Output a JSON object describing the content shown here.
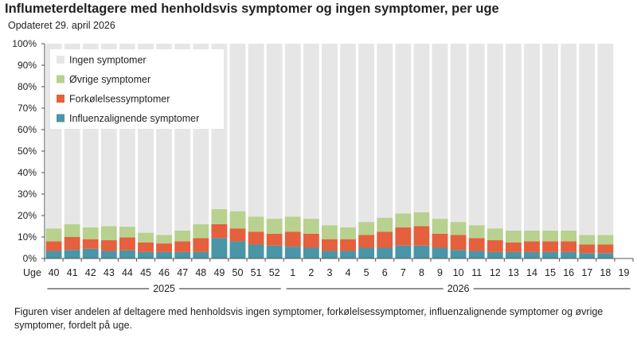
{
  "header": {
    "title": "Influmeterdeltagere med henholdsvis symptomer og ingen symptomer, per uge",
    "subtitle": "Opdateret 29. april 2026"
  },
  "caption": "Figuren viser andelen af deltagere med henholdsvis ingen symptomer, forkølelsessymptomer, influenzalignende symptomer og øvrige symptomer, fordelt på uge.",
  "chart_data": {
    "type": "bar",
    "stacked": true,
    "x_axis_prefix": "Uge",
    "categories": [
      "40",
      "41",
      "42",
      "43",
      "44",
      "45",
      "46",
      "47",
      "48",
      "49",
      "50",
      "51",
      "52",
      "1",
      "2",
      "3",
      "4",
      "5",
      "6",
      "7",
      "8",
      "9",
      "10",
      "11",
      "12",
      "13",
      "14",
      "15",
      "16",
      "17",
      "18",
      "19"
    ],
    "year_groups": [
      {
        "label": "2025",
        "start": 0,
        "end": 12
      },
      {
        "label": "2026",
        "start": 13,
        "end": 31
      }
    ],
    "ylim": [
      0,
      100
    ],
    "yticks": [
      0,
      10,
      20,
      30,
      40,
      50,
      60,
      70,
      80,
      90,
      100
    ],
    "ytick_labels": [
      "0%",
      "10%",
      "20%",
      "30%",
      "40%",
      "50%",
      "60%",
      "70%",
      "80%",
      "90%",
      "100%"
    ],
    "grid": false,
    "legend_position": "top-left",
    "legend_order": [
      "Ingen symptomer",
      "Øvrige symptomer",
      "Forkølelsessymptomer",
      "Influenzalignende symptomer"
    ],
    "series": [
      {
        "name": "Influenzalignende symptomer",
        "color": "#4a95a7",
        "values": [
          3.5,
          4,
          4.5,
          3.5,
          3.8,
          3,
          3,
          3,
          3,
          9.5,
          8,
          6.5,
          6,
          5.5,
          5,
          3.5,
          3.5,
          5,
          5,
          6,
          6,
          5,
          4,
          3.5,
          3,
          3,
          3,
          3,
          3,
          2.5,
          2.5,
          null
        ]
      },
      {
        "name": "Forkølelsessymptomer",
        "color": "#e5603c",
        "values": [
          4.5,
          6,
          4.5,
          5,
          6,
          4.5,
          4,
          5,
          6.5,
          6.5,
          6,
          6,
          5.5,
          7,
          6.5,
          5.5,
          5.5,
          6,
          7.5,
          8.5,
          9,
          6.5,
          7,
          6,
          5.5,
          4.5,
          5,
          5,
          5,
          4,
          4,
          null
        ]
      },
      {
        "name": "Øvrige symptomer",
        "color": "#b8d18f",
        "values": [
          6,
          6,
          5.5,
          6.5,
          5,
          4.5,
          4,
          5,
          6.5,
          7,
          8,
          7,
          7,
          7,
          7,
          6.5,
          5.5,
          6,
          6.5,
          6.5,
          6.5,
          7,
          6,
          6,
          5.5,
          5.5,
          5,
          5,
          5,
          4.5,
          4.5,
          null
        ]
      },
      {
        "name": "Ingen symptomer",
        "color": "#e6e6e6",
        "values": [
          86,
          84,
          85.5,
          85,
          85.2,
          88,
          89,
          87,
          84,
          77,
          78,
          80.5,
          81.5,
          80.5,
          81.5,
          84.5,
          85.5,
          83,
          81,
          79,
          78.5,
          81.5,
          83,
          84.5,
          86,
          87,
          87,
          87,
          87,
          89,
          89,
          null
        ]
      }
    ]
  }
}
